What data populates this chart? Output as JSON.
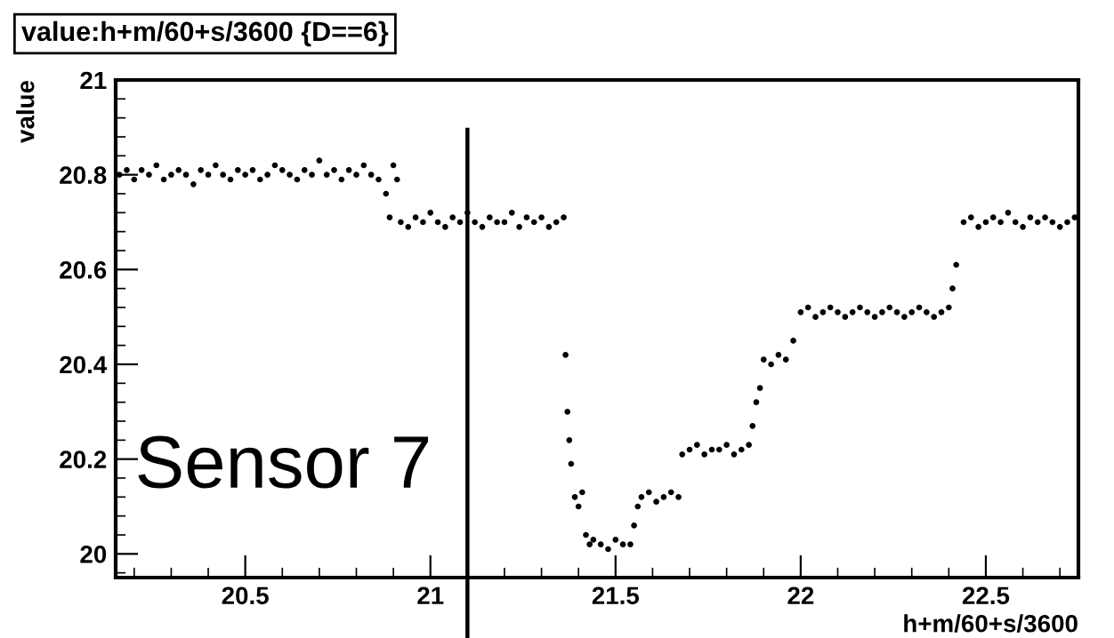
{
  "chart_data": {
    "type": "scatter",
    "title": "value:h+m/60+s/3600 {D==6}",
    "xlabel": "h+m/60+s/3600",
    "ylabel": "value",
    "annotations": [
      "Sensor 7"
    ],
    "ref_lines": [
      {
        "axis": "x",
        "value": 21.1,
        "label": null,
        "color": "#000000"
      }
    ],
    "xlim": [
      20.15,
      22.75
    ],
    "ylim": [
      19.95,
      21
    ],
    "xticks": [
      20.5,
      21,
      21.5,
      22,
      22.5
    ],
    "yticks": [
      20,
      20.2,
      20.4,
      20.6,
      20.8,
      21
    ],
    "grid": false,
    "legend": false,
    "marker": "circle",
    "series": [
      {
        "color": "#000000",
        "x": [
          20.16,
          20.18,
          20.2,
          20.22,
          20.24,
          20.26,
          20.28,
          20.3,
          20.32,
          20.34,
          20.36,
          20.38,
          20.4,
          20.42,
          20.44,
          20.46,
          20.48,
          20.5,
          20.52,
          20.54,
          20.56,
          20.58,
          20.6,
          20.62,
          20.64,
          20.66,
          20.68,
          20.7,
          20.72,
          20.74,
          20.76,
          20.78,
          20.8,
          20.82,
          20.84,
          20.86,
          20.88,
          20.89,
          20.9,
          20.91,
          20.92,
          20.94,
          20.96,
          20.98,
          21.0,
          21.02,
          21.04,
          21.06,
          21.08,
          21.1,
          21.12,
          21.14,
          21.16,
          21.18,
          21.2,
          21.22,
          21.24,
          21.26,
          21.28,
          21.3,
          21.32,
          21.34,
          21.36,
          21.365,
          21.37,
          21.375,
          21.38,
          21.39,
          21.4,
          21.41,
          21.42,
          21.43,
          21.44,
          21.46,
          21.48,
          21.5,
          21.52,
          21.54,
          21.55,
          21.56,
          21.57,
          21.59,
          21.61,
          21.63,
          21.65,
          21.67,
          21.68,
          21.7,
          21.72,
          21.74,
          21.76,
          21.78,
          21.8,
          21.82,
          21.84,
          21.86,
          21.87,
          21.88,
          21.89,
          21.9,
          21.92,
          21.94,
          21.96,
          21.98,
          22.0,
          22.02,
          22.04,
          22.06,
          22.08,
          22.1,
          22.12,
          22.14,
          22.16,
          22.18,
          22.2,
          22.22,
          22.24,
          22.26,
          22.28,
          22.3,
          22.32,
          22.34,
          22.36,
          22.38,
          22.4,
          22.41,
          22.42,
          22.44,
          22.46,
          22.48,
          22.5,
          22.52,
          22.54,
          22.56,
          22.58,
          22.6,
          22.62,
          22.64,
          22.66,
          22.68,
          22.7,
          22.72,
          22.74
        ],
        "values": [
          20.8,
          20.81,
          20.79,
          20.81,
          20.8,
          20.82,
          20.79,
          20.8,
          20.81,
          20.8,
          20.78,
          20.81,
          20.8,
          20.82,
          20.8,
          20.79,
          20.81,
          20.8,
          20.81,
          20.79,
          20.8,
          20.82,
          20.81,
          20.8,
          20.79,
          20.81,
          20.8,
          20.83,
          20.8,
          20.81,
          20.79,
          20.81,
          20.8,
          20.82,
          20.8,
          20.79,
          20.76,
          20.71,
          20.82,
          20.79,
          20.7,
          20.69,
          20.71,
          20.7,
          20.72,
          20.7,
          20.69,
          20.71,
          20.7,
          20.72,
          20.7,
          20.69,
          20.71,
          20.7,
          20.7,
          20.72,
          20.69,
          20.71,
          20.7,
          20.71,
          20.69,
          20.7,
          20.71,
          20.42,
          20.3,
          20.24,
          20.19,
          20.12,
          20.1,
          20.13,
          20.04,
          20.02,
          20.03,
          20.02,
          20.01,
          20.03,
          20.02,
          20.02,
          20.06,
          20.1,
          20.12,
          20.13,
          20.11,
          20.12,
          20.13,
          20.12,
          20.21,
          20.22,
          20.23,
          20.21,
          20.22,
          20.22,
          20.23,
          20.21,
          20.22,
          20.23,
          20.27,
          20.32,
          20.35,
          20.41,
          20.4,
          20.42,
          20.41,
          20.45,
          20.51,
          20.52,
          20.5,
          20.51,
          20.52,
          20.51,
          20.5,
          20.51,
          20.52,
          20.51,
          20.5,
          20.51,
          20.52,
          20.51,
          20.5,
          20.51,
          20.52,
          20.51,
          20.5,
          20.51,
          20.52,
          20.56,
          20.61,
          20.7,
          20.71,
          20.69,
          20.7,
          20.71,
          20.7,
          20.72,
          20.7,
          20.69,
          20.71,
          20.7,
          20.71,
          20.7,
          20.69,
          20.7,
          20.71
        ]
      }
    ]
  }
}
